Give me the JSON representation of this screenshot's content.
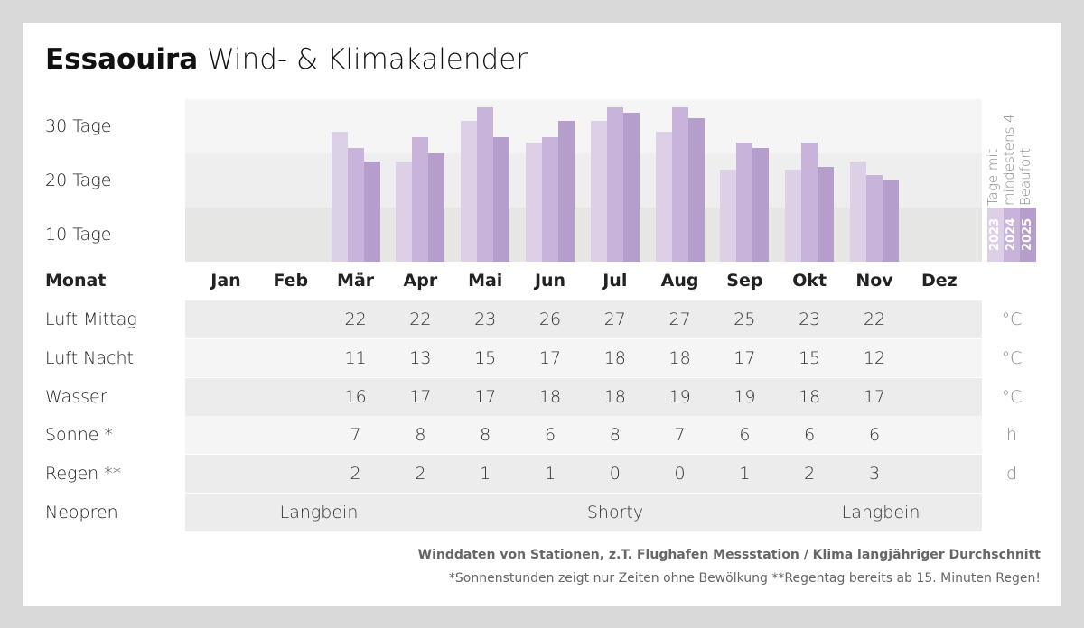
{
  "title": {
    "bold": "Essaouira",
    "rest": "Wind- & Klimakalender"
  },
  "chart_data": {
    "type": "bar",
    "categories": [
      "Jan",
      "Feb",
      "Mär",
      "Apr",
      "Mai",
      "Jun",
      "Jul",
      "Aug",
      "Sep",
      "Okt",
      "Nov",
      "Dez"
    ],
    "ylabel_ticks": [
      "30 Tage",
      "20 Tage",
      "10 Tage"
    ],
    "ylim": [
      0,
      30
    ],
    "legend_title": "Tage mit mindestens 4 Beaufort",
    "legend_placement": "right",
    "series": [
      {
        "name": "2023",
        "color": "#dcd0e6",
        "values": [
          null,
          null,
          24,
          18.5,
          26,
          22,
          26,
          24,
          17,
          17,
          18.5,
          null
        ]
      },
      {
        "name": "2024",
        "color": "#c8b4da",
        "values": [
          null,
          null,
          21,
          23,
          28.5,
          23,
          28.5,
          28.5,
          22,
          22,
          16,
          null
        ]
      },
      {
        "name": "2025",
        "color": "#b59dcc",
        "values": [
          null,
          null,
          18.5,
          20,
          23,
          26,
          27.5,
          26.5,
          21,
          17.5,
          15,
          null
        ]
      }
    ]
  },
  "table": {
    "month_header": "Monat",
    "rows": [
      {
        "label": "Luft Mittag",
        "unit": "°C",
        "values": [
          "",
          "",
          "22",
          "22",
          "23",
          "26",
          "27",
          "27",
          "25",
          "23",
          "22",
          ""
        ]
      },
      {
        "label": "Luft Nacht",
        "unit": "°C",
        "values": [
          "",
          "",
          "11",
          "13",
          "15",
          "17",
          "18",
          "18",
          "17",
          "15",
          "12",
          ""
        ]
      },
      {
        "label": "Wasser",
        "unit": "°C",
        "values": [
          "",
          "",
          "16",
          "17",
          "17",
          "18",
          "18",
          "19",
          "19",
          "18",
          "17",
          ""
        ]
      },
      {
        "label": "Sonne *",
        "unit": "h",
        "values": [
          "",
          "",
          "7",
          "8",
          "8",
          "6",
          "8",
          "7",
          "6",
          "6",
          "6",
          ""
        ]
      },
      {
        "label": "Regen **",
        "unit": "d",
        "values": [
          "",
          "",
          "2",
          "2",
          "1",
          "1",
          "0",
          "0",
          "1",
          "2",
          "3",
          ""
        ]
      }
    ],
    "neopren": {
      "label": "Neopren",
      "segments": [
        "Langbein",
        "Shorty",
        "Langbein"
      ]
    }
  },
  "footer": {
    "line1": "Winddaten von Stationen, z.T. Flughafen Messstation / Klima langjähriger Durchschnitt",
    "line2": "*Sonnenstunden zeigt nur Zeiten ohne Bewölkung  **Regentag bereits ab 15. Minuten Regen!"
  }
}
